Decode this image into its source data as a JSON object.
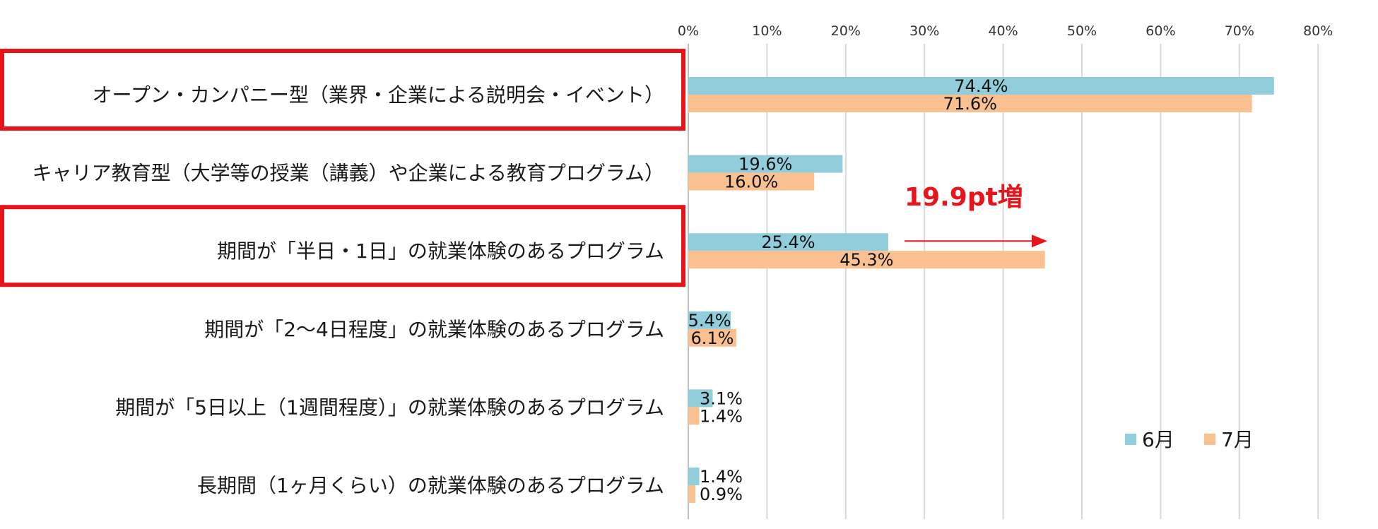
{
  "chart_data": {
    "type": "bar",
    "orientation": "horizontal",
    "title": "",
    "xlabel": "",
    "ylabel": "",
    "xlim": [
      0,
      80
    ],
    "ticks": [
      "0%",
      "10%",
      "20%",
      "30%",
      "40%",
      "50%",
      "60%",
      "70%",
      "80%"
    ],
    "grid": true,
    "categories": [
      "オープン・カンパニー型（業界・企業による説明会・イベント）",
      "キャリア教育型（大学等の授業（講義）や企業による教育プログラム）",
      "期間が「半日・1日」の就業体験のあるプログラム",
      "期間が「2～4日程度」の就業体験のあるプログラム",
      "期間が「5日以上（1週間程度）」の就業体験のあるプログラム",
      "長期間（1ヶ月くらい）の就業体験のあるプログラム"
    ],
    "series": [
      {
        "name": "6月",
        "color": "#92cddc",
        "values": [
          74.4,
          19.6,
          25.4,
          5.4,
          3.1,
          1.4
        ],
        "labels": [
          "74.4%",
          "19.6%",
          "25.4%",
          "5.4%",
          "3.1%",
          "1.4%"
        ]
      },
      {
        "name": "7月",
        "color": "#fac090",
        "values": [
          71.6,
          16.0,
          45.3,
          6.1,
          1.4,
          0.9
        ],
        "labels": [
          "71.6%",
          "16.0%",
          "45.3%",
          "6.1%",
          "1.4%",
          "0.9%"
        ]
      }
    ],
    "legend_position": "bottom-right",
    "highlighted_categories": [
      0,
      2
    ],
    "highlight_color": "#e8141c",
    "annotation": {
      "text": "19.9pt増",
      "category_index": 2
    }
  }
}
